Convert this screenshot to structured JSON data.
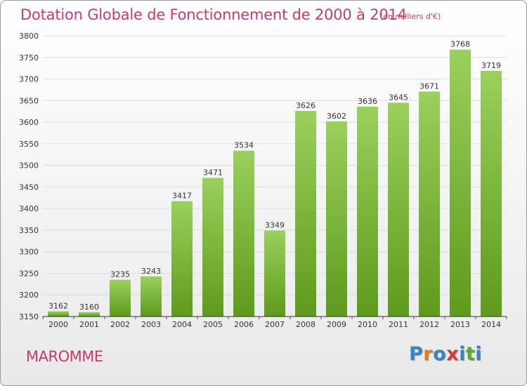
{
  "header": {
    "title": "Dotation Globale de Fonctionnement de 2000 à 2014",
    "subtitle": "(en milliers d'€)"
  },
  "footer": {
    "town": "MAROMME",
    "logo_letters": [
      "P",
      "r",
      "o",
      "x",
      "i",
      "t",
      "i"
    ],
    "logo_colors": [
      "#3a85c5",
      "#e57b1e",
      "#3a85c5",
      "#d73c3c",
      "#3a85c5",
      "#5aaa2a",
      "#3a85c5"
    ]
  },
  "chart_data": {
    "type": "bar",
    "categories": [
      "2000",
      "2001",
      "2002",
      "2003",
      "2004",
      "2005",
      "2006",
      "2007",
      "2008",
      "2009",
      "2010",
      "2011",
      "2012",
      "2013",
      "2014"
    ],
    "values": [
      3162,
      3160,
      3235,
      3243,
      3417,
      3471,
      3534,
      3349,
      3626,
      3602,
      3636,
      3645,
      3671,
      3768,
      3719
    ],
    "ylim": [
      3150,
      3800
    ],
    "yticks": [
      3150,
      3200,
      3250,
      3300,
      3350,
      3400,
      3450,
      3500,
      3550,
      3600,
      3650,
      3700,
      3750,
      3800
    ],
    "grid": true,
    "colors": {
      "bar_top": "#9ad05c",
      "bar_bottom": "#5e9a1c",
      "grid": "#dddddd",
      "axis": "#333333"
    }
  }
}
